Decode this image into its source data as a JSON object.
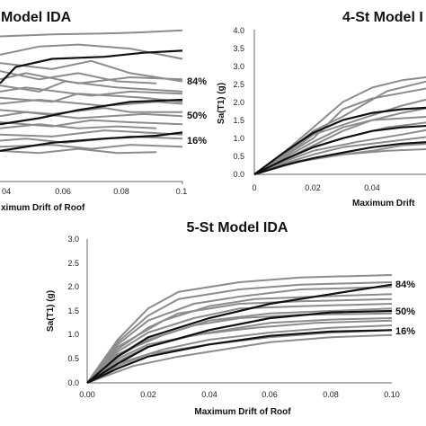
{
  "chart_data": [
    {
      "type": "line",
      "title": "Model IDA",
      "xlabel": "ximum Drift of Roof",
      "ylabel": "",
      "xticks": [
        "04",
        "0.06",
        "0.08",
        "0.1"
      ],
      "xlim": [
        0.03,
        0.1
      ],
      "ylim": [
        0,
        4
      ],
      "grid": false,
      "records": {
        "color": "#8c8c8c",
        "curves": [
          {
            "x": [
              0.03,
              0.05,
              0.07,
              0.085,
              0.1
            ],
            "y": [
              3.55,
              3.6,
              3.62,
              3.65,
              3.7
            ]
          },
          {
            "x": [
              0.03,
              0.045,
              0.06,
              0.08,
              0.1
            ],
            "y": [
              3.1,
              3.3,
              3.35,
              3.25,
              3.0
            ]
          },
          {
            "x": [
              0.03,
              0.05,
              0.065,
              0.08,
              0.1
            ],
            "y": [
              2.9,
              2.75,
              2.95,
              2.65,
              2.45
            ]
          },
          {
            "x": [
              0.03,
              0.045,
              0.06,
              0.075,
              0.09
            ],
            "y": [
              2.7,
              2.5,
              2.65,
              2.45,
              2.4
            ]
          },
          {
            "x": [
              0.03,
              0.04,
              0.06,
              0.08,
              0.1
            ],
            "y": [
              2.5,
              2.65,
              2.4,
              2.55,
              2.5
            ]
          },
          {
            "x": [
              0.03,
              0.045,
              0.055,
              0.075,
              0.1
            ],
            "y": [
              2.35,
              2.2,
              2.45,
              2.3,
              2.2
            ]
          },
          {
            "x": [
              0.03,
              0.04,
              0.065,
              0.08,
              0.1
            ],
            "y": [
              2.2,
              2.3,
              2.1,
              2.2,
              2.15
            ]
          },
          {
            "x": [
              0.03,
              0.05,
              0.06,
              0.085,
              0.1
            ],
            "y": [
              2.05,
              1.95,
              2.15,
              2.05,
              1.95
            ]
          },
          {
            "x": [
              0.03,
              0.045,
              0.07,
              0.09,
              0.1
            ],
            "y": [
              1.9,
              2.0,
              1.85,
              1.95,
              1.9
            ]
          },
          {
            "x": [
              0.03,
              0.05,
              0.07,
              0.08,
              0.1
            ],
            "y": [
              1.75,
              1.65,
              1.8,
              1.7,
              1.7
            ]
          },
          {
            "x": [
              0.03,
              0.04,
              0.06,
              0.085,
              0.1
            ],
            "y": [
              1.6,
              1.7,
              1.55,
              1.65,
              1.6
            ]
          },
          {
            "x": [
              0.03,
              0.05,
              0.065,
              0.08,
              0.1
            ],
            "y": [
              1.45,
              1.35,
              1.5,
              1.45,
              1.4
            ]
          },
          {
            "x": [
              0.03,
              0.045,
              0.06,
              0.075,
              0.09
            ],
            "y": [
              1.3,
              1.4,
              1.3,
              1.35,
              1.3
            ]
          },
          {
            "x": [
              0.03,
              0.05,
              0.07,
              0.085,
              0.1
            ],
            "y": [
              1.15,
              1.1,
              1.25,
              1.2,
              1.15
            ]
          },
          {
            "x": [
              0.03,
              0.04,
              0.055,
              0.08,
              0.1
            ],
            "y": [
              1.0,
              1.05,
              0.95,
              1.1,
              1.05
            ]
          },
          {
            "x": [
              0.03,
              0.05,
              0.065,
              0.08,
              0.1
            ],
            "y": [
              0.85,
              0.9,
              0.8,
              0.9,
              0.85
            ]
          },
          {
            "x": [
              0.03,
              0.045,
              0.06,
              0.075,
              0.09
            ],
            "y": [
              0.75,
              0.7,
              0.8,
              0.7,
              0.72
            ]
          }
        ]
      },
      "quantiles": [
        {
          "label": "84%",
          "x": [
            0.03,
            0.036,
            0.05,
            0.07,
            0.085,
            0.1
          ],
          "y": [
            2.4,
            2.8,
            3.0,
            3.05,
            3.15,
            3.2
          ]
        },
        {
          "label": "50%",
          "x": [
            0.03,
            0.045,
            0.06,
            0.08,
            0.1
          ],
          "y": [
            1.4,
            1.55,
            1.75,
            1.95,
            2.0
          ]
        },
        {
          "label": "16%",
          "x": [
            0.03,
            0.05,
            0.07,
            0.09,
            0.1
          ],
          "y": [
            0.75,
            0.95,
            1.05,
            1.12,
            1.2
          ]
        }
      ]
    },
    {
      "type": "line",
      "title": "4-St Model I",
      "xlabel": "Maximum Drift",
      "ylabel": "Sa(T1) (g)",
      "xticks": [
        "0",
        "0.02",
        "0.04"
      ],
      "yticks": [
        "0.0",
        "0.5",
        "1.0",
        "1.5",
        "2.0",
        "2.5",
        "3.0",
        "3.5",
        "4.0"
      ],
      "xlim": [
        0,
        0.06
      ],
      "ylim": [
        0,
        4
      ],
      "grid": false,
      "records": {
        "color": "#8c8c8c",
        "curves": [
          {
            "x": [
              0,
              0.01,
              0.02,
              0.03,
              0.04,
              0.05,
              0.06
            ],
            "y": [
              0,
              0.6,
              1.3,
              2.0,
              2.4,
              2.6,
              2.7
            ]
          },
          {
            "x": [
              0,
              0.01,
              0.02,
              0.03,
              0.045,
              0.06
            ],
            "y": [
              0,
              0.55,
              1.2,
              1.6,
              2.3,
              2.6
            ]
          },
          {
            "x": [
              0,
              0.01,
              0.02,
              0.03,
              0.04,
              0.06
            ],
            "y": [
              0,
              0.5,
              1.0,
              1.8,
              2.1,
              2.4
            ]
          },
          {
            "x": [
              0,
              0.01,
              0.02,
              0.035,
              0.05,
              0.06
            ],
            "y": [
              0,
              0.5,
              1.1,
              1.5,
              1.9,
              2.1
            ]
          },
          {
            "x": [
              0,
              0.01,
              0.02,
              0.03,
              0.05,
              0.06
            ],
            "y": [
              0,
              0.45,
              0.9,
              1.3,
              1.7,
              1.85
            ]
          },
          {
            "x": [
              0,
              0.01,
              0.02,
              0.03,
              0.04,
              0.06
            ],
            "y": [
              0,
              0.4,
              0.8,
              1.2,
              1.5,
              1.6
            ]
          },
          {
            "x": [
              0,
              0.01,
              0.02,
              0.03,
              0.045,
              0.06
            ],
            "y": [
              0,
              0.4,
              0.75,
              1.0,
              1.3,
              1.45
            ]
          },
          {
            "x": [
              0,
              0.01,
              0.02,
              0.035,
              0.05,
              0.06
            ],
            "y": [
              0,
              0.35,
              0.65,
              0.9,
              1.1,
              1.25
            ]
          },
          {
            "x": [
              0,
              0.01,
              0.02,
              0.03,
              0.05,
              0.06
            ],
            "y": [
              0,
              0.3,
              0.55,
              0.75,
              0.95,
              1.05
            ]
          },
          {
            "x": [
              0,
              0.01,
              0.025,
              0.04,
              0.05,
              0.06
            ],
            "y": [
              0,
              0.3,
              0.5,
              0.65,
              0.8,
              0.85
            ]
          },
          {
            "x": [
              0,
              0.015,
              0.03,
              0.045,
              0.06
            ],
            "y": [
              0,
              0.35,
              0.55,
              0.65,
              0.7
            ]
          }
        ]
      },
      "quantiles": [
        {
          "x": [
            0,
            0.01,
            0.02,
            0.03,
            0.04,
            0.05,
            0.06
          ],
          "y": [
            0,
            0.6,
            1.15,
            1.5,
            1.7,
            1.8,
            1.85
          ]
        },
        {
          "x": [
            0,
            0.01,
            0.02,
            0.03,
            0.04,
            0.05,
            0.06
          ],
          "y": [
            0,
            0.4,
            0.75,
            1.0,
            1.2,
            1.3,
            1.35
          ]
        },
        {
          "x": [
            0,
            0.01,
            0.02,
            0.03,
            0.04,
            0.05,
            0.06
          ],
          "y": [
            0,
            0.25,
            0.45,
            0.6,
            0.75,
            0.85,
            0.9
          ]
        }
      ]
    },
    {
      "type": "line",
      "title": "5-St Model IDA",
      "xlabel": "Maximum Drift of Roof",
      "ylabel": "Sa(T1) (g)",
      "xticks": [
        "0.00",
        "0.02",
        "0.04",
        "0.06",
        "0.08",
        "0.10"
      ],
      "yticks": [
        "0.0",
        "0.5",
        "1.0",
        "1.5",
        "2.0",
        "2.5",
        "3.0"
      ],
      "xlim": [
        0,
        0.1
      ],
      "ylim": [
        0,
        3
      ],
      "grid": false,
      "records": {
        "color": "#8c8c8c",
        "curves": [
          {
            "x": [
              0,
              0.01,
              0.02,
              0.03,
              0.05,
              0.07,
              0.1
            ],
            "y": [
              0,
              0.9,
              1.55,
              1.9,
              2.1,
              2.2,
              2.25
            ]
          },
          {
            "x": [
              0,
              0.01,
              0.02,
              0.03,
              0.05,
              0.07,
              0.1
            ],
            "y": [
              0,
              0.85,
              1.4,
              1.75,
              1.95,
              2.05,
              2.1
            ]
          },
          {
            "x": [
              0,
              0.01,
              0.02,
              0.035,
              0.05,
              0.07,
              0.1
            ],
            "y": [
              0,
              0.8,
              1.3,
              1.65,
              1.8,
              1.95,
              2.0
            ]
          },
          {
            "x": [
              0,
              0.01,
              0.025,
              0.04,
              0.055,
              0.075,
              0.1
            ],
            "y": [
              0,
              0.75,
              1.3,
              1.6,
              1.75,
              1.8,
              1.85
            ]
          },
          {
            "x": [
              0,
              0.01,
              0.02,
              0.03,
              0.05,
              0.07,
              0.1
            ],
            "y": [
              0,
              0.7,
              1.15,
              1.45,
              1.65,
              1.7,
              1.75
            ]
          },
          {
            "x": [
              0,
              0.01,
              0.02,
              0.035,
              0.05,
              0.07,
              0.1
            ],
            "y": [
              0,
              0.65,
              1.05,
              1.35,
              1.55,
              1.6,
              1.65
            ]
          },
          {
            "x": [
              0,
              0.01,
              0.025,
              0.04,
              0.06,
              0.08,
              0.1
            ],
            "y": [
              0,
              0.6,
              1.0,
              1.3,
              1.45,
              1.5,
              1.55
            ]
          },
          {
            "x": [
              0,
              0.01,
              0.02,
              0.035,
              0.05,
              0.07,
              0.1
            ],
            "y": [
              0,
              0.55,
              0.9,
              1.2,
              1.35,
              1.42,
              1.45
            ]
          },
          {
            "x": [
              0,
              0.01,
              0.02,
              0.04,
              0.06,
              0.08,
              0.1
            ],
            "y": [
              0,
              0.5,
              0.8,
              1.05,
              1.25,
              1.32,
              1.35
            ]
          },
          {
            "x": [
              0,
              0.01,
              0.02,
              0.035,
              0.055,
              0.075,
              0.1
            ],
            "y": [
              0,
              0.45,
              0.75,
              1.0,
              1.15,
              1.25,
              1.3
            ]
          },
          {
            "x": [
              0,
              0.01,
              0.025,
              0.04,
              0.06,
              0.08,
              0.1
            ],
            "y": [
              0,
              0.4,
              0.7,
              0.9,
              1.05,
              1.15,
              1.2
            ]
          },
          {
            "x": [
              0,
              0.01,
              0.02,
              0.04,
              0.06,
              0.08,
              0.1
            ],
            "y": [
              0,
              0.35,
              0.6,
              0.8,
              0.95,
              1.05,
              1.1
            ]
          },
          {
            "x": [
              0,
              0.015,
              0.03,
              0.045,
              0.06,
              0.08,
              0.1
            ],
            "y": [
              0,
              0.35,
              0.55,
              0.7,
              0.85,
              0.95,
              1.0
            ]
          }
        ]
      },
      "quantiles": [
        {
          "label": "84%",
          "x": [
            0,
            0.01,
            0.02,
            0.04,
            0.06,
            0.08,
            0.1
          ],
          "y": [
            0,
            0.55,
            0.95,
            1.35,
            1.65,
            1.85,
            2.05
          ]
        },
        {
          "label": "50%",
          "x": [
            0,
            0.01,
            0.02,
            0.04,
            0.06,
            0.08,
            0.1
          ],
          "y": [
            0,
            0.4,
            0.75,
            1.1,
            1.35,
            1.47,
            1.5
          ]
        },
        {
          "label": "16%",
          "x": [
            0,
            0.01,
            0.02,
            0.04,
            0.06,
            0.08,
            0.1
          ],
          "y": [
            0,
            0.3,
            0.55,
            0.8,
            0.98,
            1.07,
            1.1
          ]
        }
      ]
    }
  ]
}
